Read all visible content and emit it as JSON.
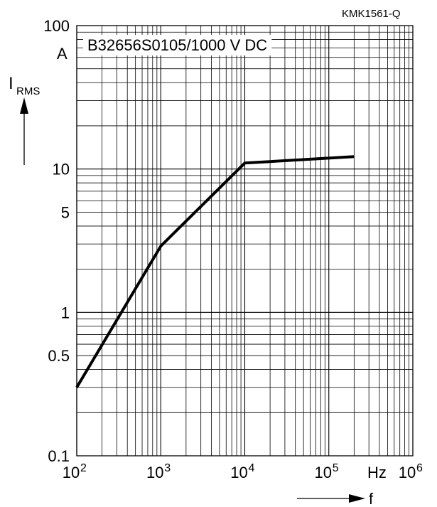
{
  "chart_data": {
    "type": "line",
    "code": "KMK1561-Q",
    "title": "B32656S0105/1000 V DC",
    "x_scale": "log",
    "y_scale": "log",
    "xlim": [
      100,
      1000000
    ],
    "ylim": [
      0.1,
      100
    ],
    "grid": true,
    "x_tick_labels": [
      {
        "value": 100,
        "base": "10",
        "exp": "2"
      },
      {
        "value": 1000,
        "base": "10",
        "exp": "3"
      },
      {
        "value": 10000,
        "base": "10",
        "exp": "4"
      },
      {
        "value": 100000,
        "base": "10",
        "exp": "5"
      },
      {
        "value": 1000000,
        "base": "10",
        "exp": "6"
      }
    ],
    "x_unit": "Hz",
    "x_label": "f",
    "y_tick_labels": [
      {
        "value": 100,
        "text": "100"
      },
      {
        "value": 10,
        "text": "10"
      },
      {
        "value": 5,
        "text": "5"
      },
      {
        "value": 1,
        "text": "1"
      },
      {
        "value": 0.5,
        "text": "0.5"
      },
      {
        "value": 0.1,
        "text": "0.1"
      }
    ],
    "y_unit": "A",
    "y_label_main": "I",
    "y_label_sub": "RMS",
    "series": [
      {
        "x": [
          100,
          1000,
          10000,
          200000
        ],
        "y": [
          0.3,
          2.9,
          11.0,
          12.2
        ]
      }
    ]
  }
}
